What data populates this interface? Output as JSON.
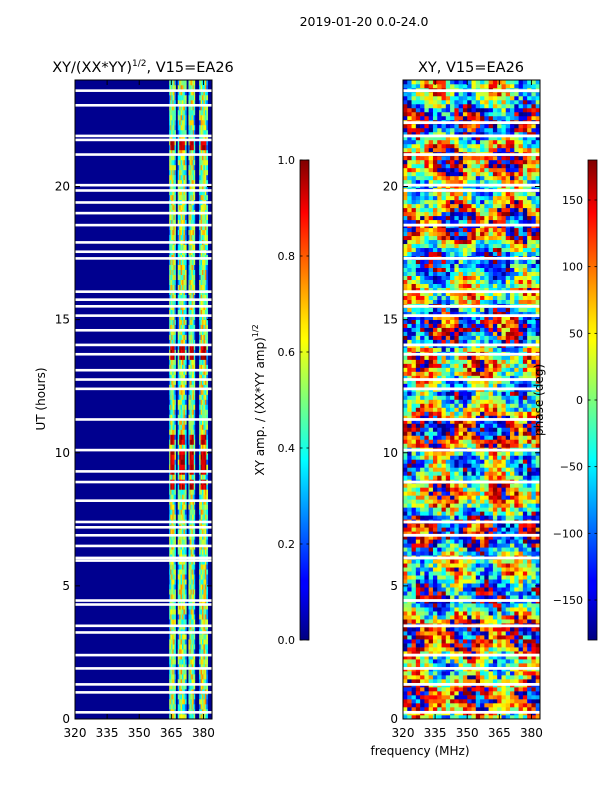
{
  "suptitle": "2019-01-20 0.0-24.0",
  "xlabel_shared": "frequency (MHz)",
  "chart_data": [
    {
      "type": "heatmap",
      "title_main": "XY/(XX*YY)",
      "title_exp": "1/2",
      "title_tail": ", V15=EA26",
      "ylabel": "UT (hours)",
      "xlim": [
        320,
        384
      ],
      "ylim": [
        0,
        24
      ],
      "xticks": [
        "320",
        "335",
        "350",
        "365",
        "380"
      ],
      "xtick_values": [
        320,
        335,
        350,
        365,
        380
      ],
      "yticks": [
        "0",
        "5",
        "10",
        "15",
        "20"
      ],
      "ytick_values": [
        0,
        5,
        10,
        15,
        20
      ],
      "colorbar": {
        "label_main": "XY amp. / (XX*YY amp)",
        "label_exp": "1/2",
        "range": [
          0.0,
          1.0
        ],
        "ticks": [
          "0.0",
          "0.2",
          "0.4",
          "0.6",
          "0.8",
          "1.0"
        ],
        "tick_values": [
          0.0,
          0.2,
          0.4,
          0.6,
          0.8,
          1.0
        ],
        "colormap": "jet"
      },
      "flagged_hours": [
        23.6,
        23.05,
        21.9,
        21.75,
        21.2,
        20.05,
        19.85,
        19.4,
        19.0,
        18.55,
        17.9,
        17.55,
        17.3,
        16.05,
        15.75,
        15.5,
        15.15,
        14.6,
        14.05,
        13.7,
        13.1,
        12.75,
        12.4,
        11.25,
        10.1,
        9.3,
        8.9,
        8.2,
        7.4,
        7.2,
        6.9,
        6.5,
        6.05,
        5.95,
        4.45,
        4.3,
        3.5,
        3.25,
        2.4,
        1.9,
        1.3,
        1.0,
        0.25
      ],
      "channel_bands_mhz": [
        [
          364,
          367
        ],
        [
          368,
          372
        ],
        [
          373,
          376
        ],
        [
          378,
          382
        ]
      ],
      "bright_hours": [
        21.5,
        13.7,
        10.4,
        9.9,
        9.4,
        8.7
      ]
    },
    {
      "type": "heatmap",
      "title": "XY, V15=EA26",
      "xlim": [
        320,
        384
      ],
      "ylim": [
        0,
        24
      ],
      "xticks": [
        "320",
        "335",
        "350",
        "365",
        "380"
      ],
      "xtick_values": [
        320,
        335,
        350,
        365,
        380
      ],
      "yticks": [
        "0",
        "5",
        "10",
        "15",
        "20"
      ],
      "ytick_values": [
        0,
        5,
        10,
        15,
        20
      ],
      "colorbar": {
        "label": "phase (deg)",
        "range": [
          -180,
          180
        ],
        "ticks": [
          "−150",
          "−100",
          "−50",
          "0",
          "50",
          "100",
          "150"
        ],
        "tick_values": [
          -150,
          -100,
          -50,
          0,
          50,
          100,
          150
        ],
        "colormap": "jet"
      },
      "flagged_hours": [
        23.6,
        22.4,
        21.9,
        21.2,
        20.05,
        19.85,
        18.55,
        17.3,
        16.05,
        15.5,
        15.15,
        14.05,
        13.7,
        12.75,
        12.4,
        11.25,
        10.1,
        8.9,
        7.4,
        6.9,
        6.05,
        4.45,
        3.5,
        2.4,
        1.9,
        1.3,
        0.25
      ]
    }
  ]
}
